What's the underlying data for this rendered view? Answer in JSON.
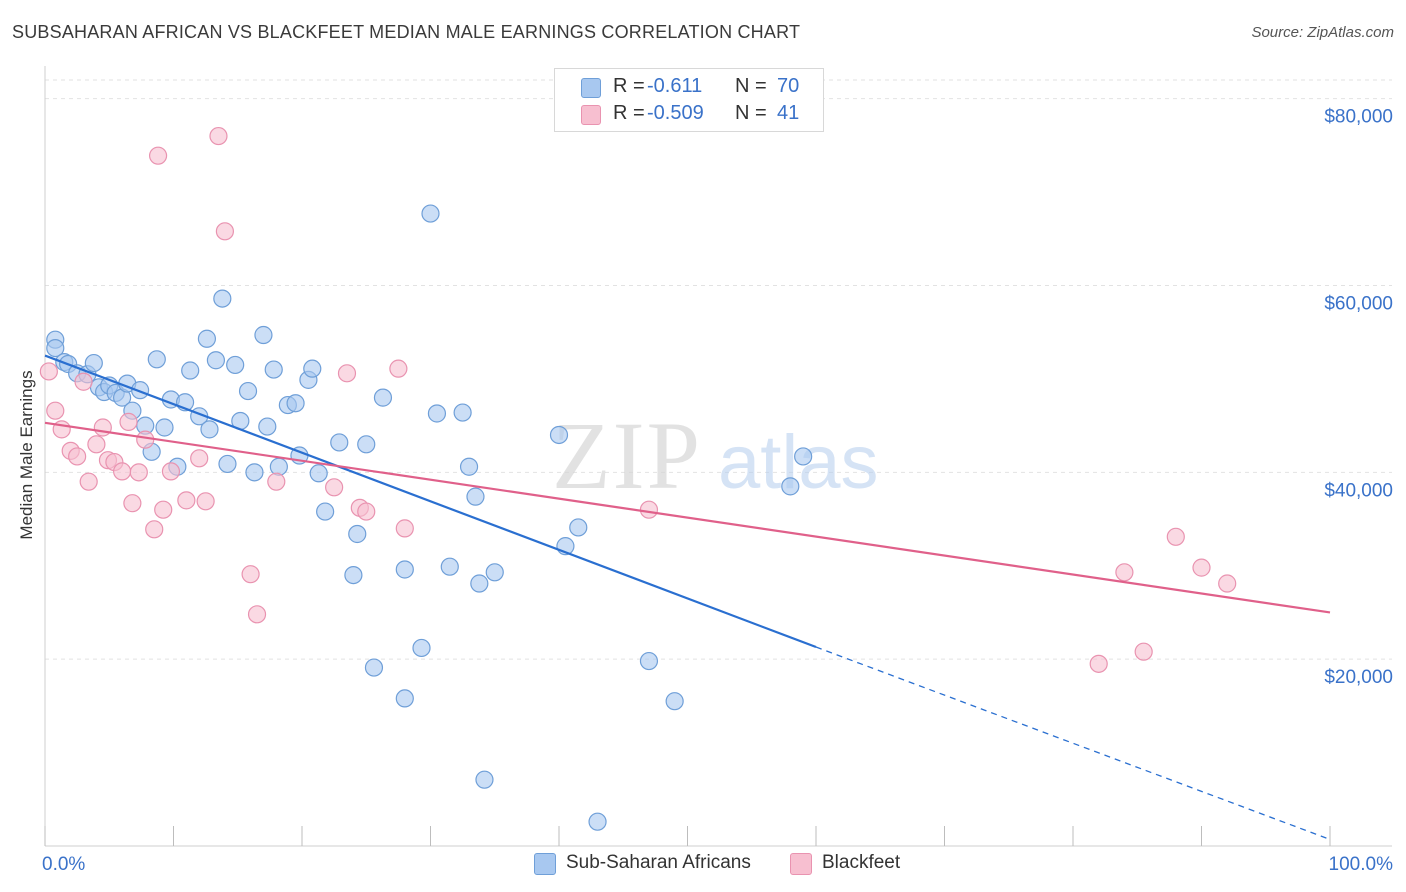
{
  "title": "SUBSAHARAN AFRICAN VS BLACKFEET MEDIAN MALE EARNINGS CORRELATION CHART",
  "source": "Source: ZipAtlas.com",
  "watermark": {
    "zip": "ZIP",
    "atlas": "atlas"
  },
  "colors": {
    "blue_fill": "#a8c8f0",
    "blue_stroke": "#6f9fd8",
    "blue_line": "#2a6fd0",
    "pink_fill": "#f7bfd0",
    "pink_stroke": "#e993b0",
    "pink_line": "#e0608a",
    "grid": "#e2e2e2",
    "tick_label": "#3a72c9"
  },
  "legend": {
    "rows": [
      {
        "r_label": "R =",
        "r_value": "-0.611",
        "n_label": "N =",
        "n_value": "70",
        "color": "#a8c8f0"
      },
      {
        "r_label": "R =",
        "r_value": "-0.509",
        "n_label": "N =",
        "n_value": "41",
        "color": "#f7bfd0"
      }
    ]
  },
  "bottom_legend": [
    {
      "label": "Sub-Saharan Africans",
      "color": "#a8c8f0"
    },
    {
      "label": "Blackfeet",
      "color": "#f7bfd0"
    }
  ],
  "chart_data": {
    "type": "scatter",
    "title": "SUBSAHARAN AFRICAN VS BLACKFEET MEDIAN MALE EARNINGS CORRELATION CHART",
    "xlabel": "",
    "ylabel": "Median Male Earnings",
    "xlim": [
      0,
      100
    ],
    "ylim": [
      0,
      82000
    ],
    "x_tick_labels": [
      "0.0%",
      "100.0%"
    ],
    "y_ticks": [
      20000,
      40000,
      60000,
      80000
    ],
    "y_tick_labels": [
      "$20,000",
      "$40,000",
      "$60,000",
      "$80,000"
    ],
    "grid": true,
    "legend_position": "top-center",
    "series": [
      {
        "name": "Sub-Saharan Africans",
        "r": -0.611,
        "n": 70,
        "trend": {
          "x0": 0,
          "y0": 52500,
          "x1": 60,
          "y1": 21300,
          "dash_to_x": 100,
          "dash_to_y": 700
        },
        "points": [
          [
            0.8,
            54200
          ],
          [
            0.8,
            53300
          ],
          [
            1.5,
            51800
          ],
          [
            1.8,
            51600
          ],
          [
            2.5,
            50600
          ],
          [
            3.3,
            50500
          ],
          [
            3.8,
            51700
          ],
          [
            4.2,
            49100
          ],
          [
            4.6,
            48600
          ],
          [
            5.0,
            49300
          ],
          [
            5.5,
            48500
          ],
          [
            6.0,
            48000
          ],
          [
            6.4,
            49500
          ],
          [
            6.8,
            46600
          ],
          [
            7.4,
            48800
          ],
          [
            7.8,
            45000
          ],
          [
            8.3,
            42200
          ],
          [
            8.7,
            52100
          ],
          [
            9.3,
            44800
          ],
          [
            9.8,
            47800
          ],
          [
            10.3,
            40600
          ],
          [
            10.9,
            47500
          ],
          [
            11.3,
            50900
          ],
          [
            12.0,
            46000
          ],
          [
            12.6,
            54300
          ],
          [
            12.8,
            44600
          ],
          [
            13.3,
            52000
          ],
          [
            13.8,
            58600
          ],
          [
            14.2,
            40900
          ],
          [
            14.8,
            51500
          ],
          [
            15.2,
            45500
          ],
          [
            15.8,
            48700
          ],
          [
            16.3,
            40000
          ],
          [
            17.0,
            54700
          ],
          [
            17.3,
            44900
          ],
          [
            17.8,
            51000
          ],
          [
            18.2,
            40600
          ],
          [
            18.9,
            47200
          ],
          [
            19.5,
            47400
          ],
          [
            19.8,
            41800
          ],
          [
            20.5,
            49900
          ],
          [
            20.8,
            51100
          ],
          [
            21.3,
            39900
          ],
          [
            21.8,
            35800
          ],
          [
            22.9,
            43200
          ],
          [
            24.0,
            29000
          ],
          [
            24.3,
            33400
          ],
          [
            25.0,
            43000
          ],
          [
            25.6,
            19100
          ],
          [
            26.3,
            48000
          ],
          [
            28.0,
            15800
          ],
          [
            28.0,
            29600
          ],
          [
            29.3,
            21200
          ],
          [
            30.0,
            67700
          ],
          [
            30.5,
            46300
          ],
          [
            31.5,
            29900
          ],
          [
            32.5,
            46400
          ],
          [
            33.0,
            40600
          ],
          [
            33.5,
            37400
          ],
          [
            33.8,
            28100
          ],
          [
            34.2,
            7100
          ],
          [
            35.0,
            29300
          ],
          [
            40.0,
            44000
          ],
          [
            40.5,
            32100
          ],
          [
            41.5,
            34100
          ],
          [
            43.0,
            2600
          ],
          [
            47.0,
            19800
          ],
          [
            49.0,
            15500
          ],
          [
            58.0,
            38500
          ],
          [
            59.0,
            41700
          ]
        ]
      },
      {
        "name": "Blackfeet",
        "r": -0.509,
        "n": 41,
        "trend": {
          "x0": 0,
          "y0": 45300,
          "x1": 100,
          "y1": 25000
        },
        "points": [
          [
            0.3,
            50800
          ],
          [
            0.8,
            46600
          ],
          [
            1.3,
            44600
          ],
          [
            2.0,
            42300
          ],
          [
            2.5,
            41700
          ],
          [
            3.0,
            49700
          ],
          [
            3.4,
            39000
          ],
          [
            4.0,
            43000
          ],
          [
            4.5,
            44800
          ],
          [
            4.9,
            41300
          ],
          [
            5.4,
            41100
          ],
          [
            6.0,
            40100
          ],
          [
            6.5,
            45400
          ],
          [
            6.8,
            36700
          ],
          [
            7.3,
            40000
          ],
          [
            7.8,
            43500
          ],
          [
            8.5,
            33900
          ],
          [
            8.8,
            73900
          ],
          [
            9.2,
            36000
          ],
          [
            9.8,
            40100
          ],
          [
            11.0,
            37000
          ],
          [
            12.0,
            41500
          ],
          [
            12.5,
            36900
          ],
          [
            13.5,
            76000
          ],
          [
            14.0,
            65800
          ],
          [
            16.0,
            29100
          ],
          [
            16.5,
            24800
          ],
          [
            18.0,
            39000
          ],
          [
            22.5,
            38400
          ],
          [
            23.5,
            50600
          ],
          [
            24.5,
            36200
          ],
          [
            25.0,
            35800
          ],
          [
            27.5,
            51100
          ],
          [
            28.0,
            34000
          ],
          [
            47.0,
            36000
          ],
          [
            82.0,
            19500
          ],
          [
            84.0,
            29300
          ],
          [
            85.5,
            20800
          ],
          [
            88.0,
            33100
          ],
          [
            90.0,
            29800
          ],
          [
            92.0,
            28100
          ]
        ]
      }
    ]
  }
}
